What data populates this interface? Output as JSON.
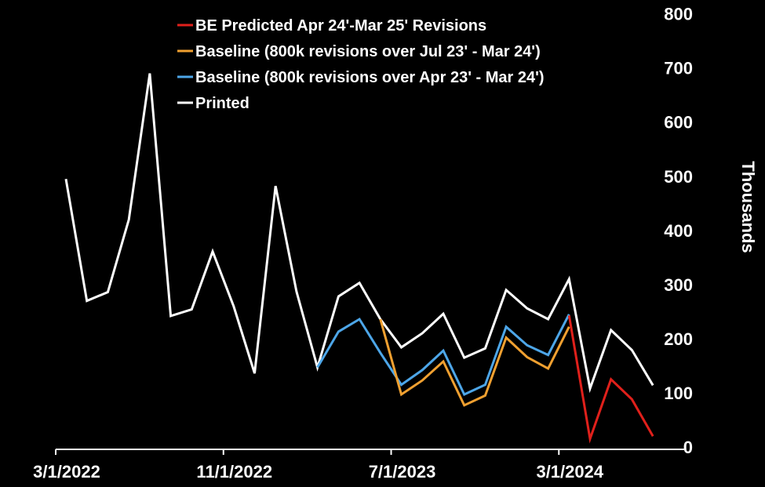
{
  "chart_data": {
    "type": "line",
    "ylabel": "Thousands",
    "ylim": [
      0,
      800
    ],
    "yticks": [
      0,
      100,
      200,
      300,
      400,
      500,
      600,
      700,
      800
    ],
    "xticks": [
      "3/1/2022",
      "11/1/2022",
      "7/1/2023",
      "3/1/2024"
    ],
    "x_start": "3/1/2022",
    "x_end": "8/1/2024",
    "grid": false,
    "legend_position": "top-left",
    "series": [
      {
        "name": "BE Predicted Apr 24'-Mar 25' Revisions",
        "color": "#e0201b",
        "x": [
          "3/1/2024",
          "4/1/2024",
          "5/1/2024",
          "6/1/2024",
          "7/1/2024"
        ],
        "values": [
          243,
          15,
          125,
          88,
          20
        ]
      },
      {
        "name": "Baseline (800k revisions over Jul 23' - Mar 24')",
        "color": "#f0a030",
        "x": [
          "6/1/2023",
          "7/1/2023",
          "8/1/2023",
          "9/1/2023",
          "10/1/2023",
          "11/1/2023",
          "12/1/2023",
          "1/1/2024",
          "2/1/2024",
          "3/1/2024"
        ],
        "values": [
          236,
          97,
          123,
          158,
          77,
          95,
          202,
          166,
          145,
          222
        ]
      },
      {
        "name": "Baseline (800k revisions over Apr 23' - Mar 24')",
        "color": "#4da6e8",
        "x": [
          "3/1/2023",
          "4/1/2023",
          "5/1/2023",
          "6/1/2023",
          "7/1/2023",
          "8/1/2023",
          "9/1/2023",
          "10/1/2023",
          "11/1/2023",
          "12/1/2023",
          "1/1/2024",
          "2/1/2024",
          "3/1/2024"
        ],
        "values": [
          147,
          213,
          236,
          174,
          115,
          142,
          178,
          97,
          115,
          222,
          188,
          170,
          245
        ]
      },
      {
        "name": "Printed",
        "color": "#ffffff",
        "x": [
          "3/1/2022",
          "4/1/2022",
          "5/1/2022",
          "6/1/2022",
          "7/1/2022",
          "8/1/2022",
          "9/1/2022",
          "10/1/2022",
          "11/1/2022",
          "12/1/2022",
          "1/1/2023",
          "2/1/2023",
          "3/1/2023",
          "4/1/2023",
          "5/1/2023",
          "6/1/2023",
          "7/1/2023",
          "8/1/2023",
          "9/1/2023",
          "10/1/2023",
          "11/1/2023",
          "12/1/2023",
          "1/1/2024",
          "2/1/2024",
          "3/1/2024",
          "4/1/2024",
          "5/1/2024",
          "6/1/2024",
          "7/1/2024"
        ],
        "values": [
          495,
          270,
          286,
          420,
          690,
          242,
          254,
          361,
          260,
          136,
          482,
          287,
          147,
          278,
          303,
          236,
          184,
          210,
          246,
          165,
          182,
          290,
          256,
          236,
          310,
          108,
          216,
          179,
          114
        ]
      }
    ]
  }
}
